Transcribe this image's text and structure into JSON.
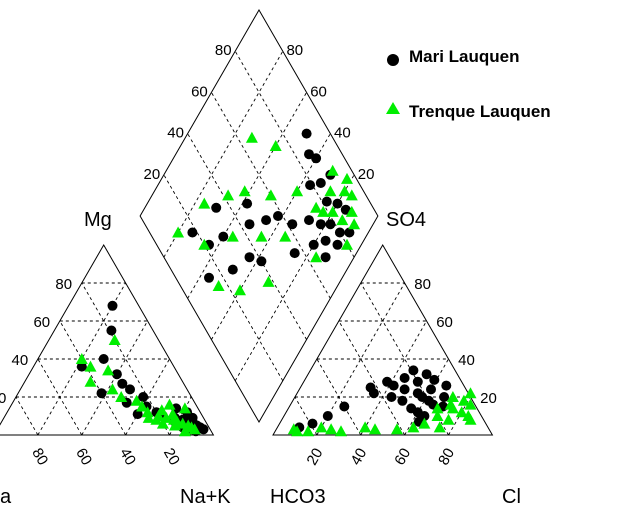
{
  "chart_data": {
    "type": "scatter",
    "subtype": "piper-diagram",
    "axes": {
      "mg": "Mg",
      "cations_right": "Na+K",
      "cations_left": "a",
      "hco3": "HCO3",
      "cl": "Cl",
      "so4": "SO4"
    },
    "tick_values": [
      20,
      40,
      60,
      80
    ],
    "tick_labels": [
      "20",
      "40",
      "60",
      "80"
    ],
    "grid": true,
    "legend_position": "top-right",
    "series": [
      {
        "name": "Mari Lauquen",
        "marker": "circle",
        "color": "#000000",
        "cations": [
          {
            "mg": 68,
            "na": 20
          },
          {
            "mg": 55,
            "na": 26
          },
          {
            "mg": 40,
            "na": 30
          },
          {
            "mg": 36,
            "na": 22
          },
          {
            "mg": 27,
            "na": 45
          },
          {
            "mg": 24,
            "na": 50
          },
          {
            "mg": 22,
            "na": 38
          },
          {
            "mg": 20,
            "na": 58
          },
          {
            "mg": 17,
            "na": 52
          },
          {
            "mg": 15,
            "na": 62
          },
          {
            "mg": 12,
            "na": 68
          },
          {
            "mg": 10,
            "na": 72
          },
          {
            "mg": 9,
            "na": 78
          },
          {
            "mg": 8,
            "na": 82
          },
          {
            "mg": 7,
            "na": 85
          },
          {
            "mg": 6,
            "na": 88
          },
          {
            "mg": 5,
            "na": 90
          },
          {
            "mg": 4,
            "na": 92
          },
          {
            "mg": 3,
            "na": 94
          },
          {
            "mg": 11,
            "na": 60
          },
          {
            "mg": 14,
            "na": 76
          },
          {
            "mg": 6,
            "na": 80
          },
          {
            "mg": 9,
            "na": 86
          },
          {
            "mg": 3,
            "na": 88
          },
          {
            "mg": 2,
            "na": 91
          },
          {
            "mg": 12,
            "na": 82
          },
          {
            "mg": 32,
            "na": 40
          },
          {
            "mg": 4,
            "na": 84
          }
        ],
        "anions": [
          {
            "cl": 55,
            "so4": 22
          },
          {
            "cl": 58,
            "so4": 20
          },
          {
            "cl": 62,
            "so4": 18
          },
          {
            "cl": 65,
            "so4": 16
          },
          {
            "cl": 60,
            "so4": 24
          },
          {
            "cl": 52,
            "so4": 28
          },
          {
            "cl": 48,
            "so4": 24
          },
          {
            "cl": 45,
            "so4": 30
          },
          {
            "cl": 42,
            "so4": 26
          },
          {
            "cl": 38,
            "so4": 28
          },
          {
            "cl": 35,
            "so4": 22
          },
          {
            "cl": 32,
            "so4": 25
          },
          {
            "cl": 68,
            "so4": 20
          },
          {
            "cl": 70,
            "so4": 15
          },
          {
            "cl": 56,
            "so4": 14
          },
          {
            "cl": 50,
            "so4": 18
          },
          {
            "cl": 44,
            "so4": 20
          },
          {
            "cl": 64,
            "so4": 10
          },
          {
            "cl": 60,
            "so4": 12
          },
          {
            "cl": 54,
            "so4": 32
          },
          {
            "cl": 25,
            "so4": 15
          },
          {
            "cl": 20,
            "so4": 10
          },
          {
            "cl": 15,
            "so4": 6
          },
          {
            "cl": 10,
            "so4": 4
          },
          {
            "cl": 66,
            "so4": 26
          },
          {
            "cl": 63,
            "so4": 7
          },
          {
            "cl": 47,
            "so4": 34
          },
          {
            "cl": 59,
            "so4": 29
          }
        ],
        "diamond": [
          {
            "so4": 88,
            "mg": 15
          },
          {
            "so4": 84,
            "mg": 8
          },
          {
            "so4": 80,
            "mg": 12
          },
          {
            "so4": 86,
            "mg": 20
          },
          {
            "so4": 82,
            "mg": 25
          },
          {
            "so4": 78,
            "mg": 18
          },
          {
            "so4": 90,
            "mg": 30
          },
          {
            "so4": 76,
            "mg": 10
          },
          {
            "so4": 74,
            "mg": 22
          },
          {
            "so4": 72,
            "mg": 16
          },
          {
            "so4": 70,
            "mg": 28
          },
          {
            "so4": 84,
            "mg": 32
          },
          {
            "so4": 88,
            "mg": 40
          },
          {
            "so4": 79,
            "mg": 36
          },
          {
            "so4": 68,
            "mg": 12
          },
          {
            "so4": 66,
            "mg": 20
          },
          {
            "so4": 62,
            "mg": 34
          },
          {
            "so4": 58,
            "mg": 42
          },
          {
            "so4": 56,
            "mg": 26
          },
          {
            "so4": 52,
            "mg": 46
          },
          {
            "so4": 48,
            "mg": 58
          },
          {
            "so4": 44,
            "mg": 52
          },
          {
            "so4": 40,
            "mg": 38
          },
          {
            "so4": 36,
            "mg": 44
          },
          {
            "so4": 34,
            "mg": 70
          },
          {
            "so4": 30,
            "mg": 60
          },
          {
            "so4": 26,
            "mg": 48
          },
          {
            "so4": 22,
            "mg": 64
          },
          {
            "so4": 18,
            "mg": 74
          },
          {
            "so4": 14,
            "mg": 56
          },
          {
            "so4": 90,
            "mg": 50
          },
          {
            "so4": 86,
            "mg": 44
          }
        ]
      },
      {
        "name": "Trenque Lauquen",
        "marker": "triangle",
        "color": "#00ee00",
        "cations": [
          {
            "mg": 50,
            "na": 30
          },
          {
            "mg": 40,
            "na": 20
          },
          {
            "mg": 36,
            "na": 26
          },
          {
            "mg": 34,
            "na": 35
          },
          {
            "mg": 28,
            "na": 30
          },
          {
            "mg": 24,
            "na": 42
          },
          {
            "mg": 20,
            "na": 48
          },
          {
            "mg": 18,
            "na": 56
          },
          {
            "mg": 15,
            "na": 60
          },
          {
            "mg": 12,
            "na": 64
          },
          {
            "mg": 10,
            "na": 70
          },
          {
            "mg": 9,
            "na": 74
          },
          {
            "mg": 8,
            "na": 78
          },
          {
            "mg": 7,
            "na": 80
          },
          {
            "mg": 6,
            "na": 83
          },
          {
            "mg": 5,
            "na": 86
          },
          {
            "mg": 4,
            "na": 88
          },
          {
            "mg": 3,
            "na": 90
          },
          {
            "mg": 11,
            "na": 76
          },
          {
            "mg": 13,
            "na": 70
          },
          {
            "mg": 9,
            "na": 66
          },
          {
            "mg": 14,
            "na": 80
          },
          {
            "mg": 6,
            "na": 74
          },
          {
            "mg": 2,
            "na": 86
          },
          {
            "mg": 16,
            "na": 72
          },
          {
            "mg": 5,
            "na": 80
          },
          {
            "mg": 8,
            "na": 70
          }
        ],
        "anions": [
          {
            "cl": 75,
            "so4": 14
          },
          {
            "cl": 78,
            "so4": 18
          },
          {
            "cl": 80,
            "so4": 12
          },
          {
            "cl": 82,
            "so4": 16
          },
          {
            "cl": 72,
            "so4": 20
          },
          {
            "cl": 70,
            "so4": 10
          },
          {
            "cl": 76,
            "so4": 8
          },
          {
            "cl": 68,
            "so4": 14
          },
          {
            "cl": 66,
            "so4": 6
          },
          {
            "cl": 84,
            "so4": 10
          },
          {
            "cl": 74,
            "so4": 4
          },
          {
            "cl": 62,
            "so4": 4
          },
          {
            "cl": 55,
            "so4": 3
          },
          {
            "cl": 45,
            "so4": 3
          },
          {
            "cl": 40,
            "so4": 4
          },
          {
            "cl": 30,
            "so4": 2
          },
          {
            "cl": 25,
            "so4": 3
          },
          {
            "cl": 20,
            "so4": 4
          },
          {
            "cl": 15,
            "so4": 2
          },
          {
            "cl": 10,
            "so4": 2
          },
          {
            "cl": 8,
            "so4": 3
          },
          {
            "cl": 86,
            "so4": 8
          },
          {
            "cl": 79,
            "so4": 22
          },
          {
            "cl": 73,
            "so4": 16
          }
        ],
        "diamond": [
          {
            "so4": 92,
            "mg": 20
          },
          {
            "so4": 90,
            "mg": 12
          },
          {
            "so4": 88,
            "mg": 8
          },
          {
            "so4": 86,
            "mg": 26
          },
          {
            "so4": 94,
            "mg": 16
          },
          {
            "so4": 92,
            "mg": 30
          },
          {
            "so4": 84,
            "mg": 14
          },
          {
            "so4": 82,
            "mg": 20
          },
          {
            "so4": 80,
            "mg": 6
          },
          {
            "so4": 78,
            "mg": 24
          },
          {
            "so4": 76,
            "mg": 28
          },
          {
            "so4": 96,
            "mg": 22
          },
          {
            "so4": 72,
            "mg": 40
          },
          {
            "so4": 60,
            "mg": 50
          },
          {
            "so4": 56,
            "mg": 34
          },
          {
            "so4": 50,
            "mg": 62
          },
          {
            "so4": 46,
            "mg": 44
          },
          {
            "so4": 42,
            "mg": 68
          },
          {
            "so4": 38,
            "mg": 30
          },
          {
            "so4": 34,
            "mg": 56
          },
          {
            "so4": 30,
            "mg": 76
          },
          {
            "so4": 24,
            "mg": 40
          },
          {
            "so4": 20,
            "mg": 66
          },
          {
            "so4": 16,
            "mg": 50
          },
          {
            "so4": 66,
            "mg": 72
          },
          {
            "so4": 12,
            "mg": 80
          },
          {
            "so4": 74,
            "mg": 60
          },
          {
            "so4": 64,
            "mg": 16
          }
        ]
      }
    ]
  }
}
